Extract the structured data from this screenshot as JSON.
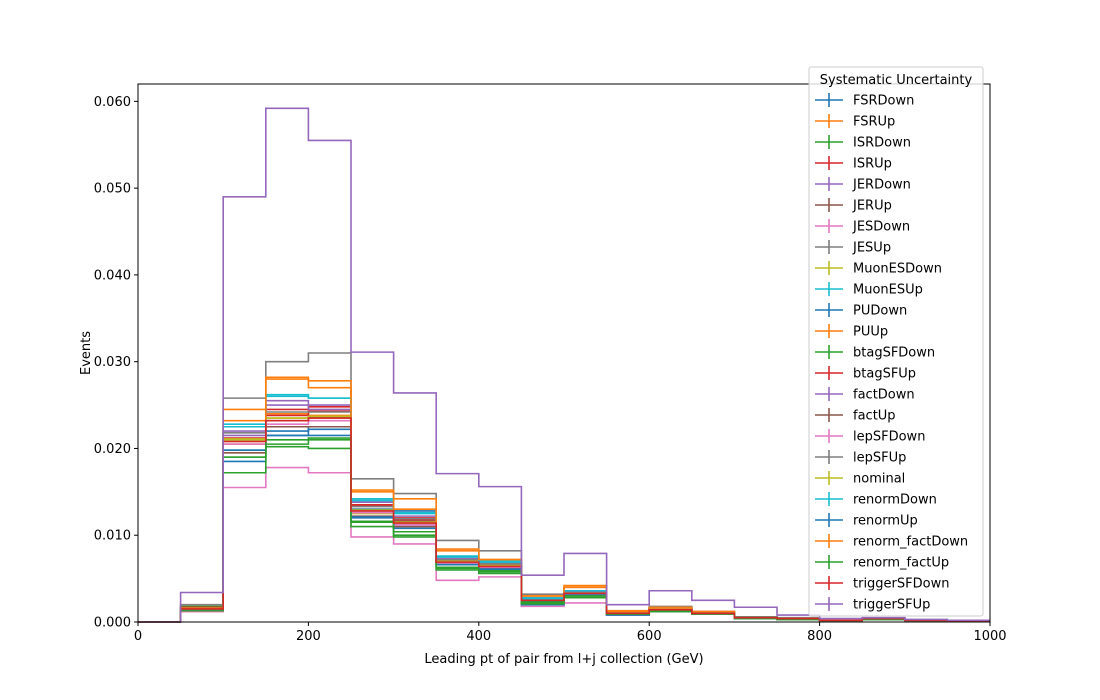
{
  "chart_data": {
    "type": "line",
    "drawstyle": "step-histogram",
    "xlabel": "Leading pt of pair from l+j collection (GeV)",
    "ylabel": "Events",
    "xlim": [
      0,
      1000
    ],
    "ylim": [
      0,
      0.062
    ],
    "x_ticks": [
      0,
      200,
      400,
      600,
      800,
      1000
    ],
    "y_ticks": [
      0.0,
      0.01,
      0.02,
      0.03,
      0.04,
      0.05,
      0.06
    ],
    "x_tick_labels": [
      "0",
      "200",
      "400",
      "600",
      "800",
      "1000"
    ],
    "y_tick_labels": [
      "0.000",
      "0.010",
      "0.020",
      "0.030",
      "0.040",
      "0.050",
      "0.060"
    ],
    "grid": false,
    "legend": {
      "title": "Systematic Uncertainty",
      "position": "top-right"
    },
    "bin_edges": [
      0,
      50,
      100,
      150,
      200,
      250,
      300,
      350,
      400,
      450,
      500,
      550,
      600,
      650,
      700,
      750,
      800,
      850,
      900,
      950,
      1000
    ],
    "series": [
      {
        "name": "FSRDown",
        "color": "#1f77b4",
        "values": [
          0,
          0.0016,
          0.0198,
          0.0215,
          0.0215,
          0.012,
          0.0112,
          0.0068,
          0.0064,
          0.0024,
          0.0032,
          0.001,
          0.0014,
          0.001,
          0.0005,
          0.0004,
          0.0002,
          0.0004,
          0.0002,
          0.0001
        ]
      },
      {
        "name": "FSRUp",
        "color": "#ff7f0e",
        "values": [
          0,
          0.0012,
          0.021,
          0.024,
          0.0238,
          0.013,
          0.0118,
          0.007,
          0.0066,
          0.0026,
          0.0034,
          0.0011,
          0.0015,
          0.0011,
          0.0005,
          0.0004,
          0.0002,
          0.0004,
          0.0002,
          0.0001
        ]
      },
      {
        "name": "ISRDown",
        "color": "#2ca02c",
        "values": [
          0,
          0.0018,
          0.019,
          0.0205,
          0.021,
          0.0115,
          0.01,
          0.0062,
          0.0058,
          0.0022,
          0.003,
          0.0009,
          0.0013,
          0.001,
          0.0005,
          0.0003,
          0.0002,
          0.0003,
          0.0002,
          0.0001
        ]
      },
      {
        "name": "ISRUp",
        "color": "#d62728",
        "values": [
          0,
          0.0014,
          0.0205,
          0.0245,
          0.0248,
          0.0135,
          0.012,
          0.007,
          0.0066,
          0.0026,
          0.0036,
          0.0012,
          0.0016,
          0.0011,
          0.0005,
          0.0004,
          0.0002,
          0.0004,
          0.0002,
          0.0001
        ]
      },
      {
        "name": "JERDown",
        "color": "#9467bd",
        "values": [
          0,
          0.0015,
          0.022,
          0.025,
          0.0245,
          0.014,
          0.0118,
          0.0072,
          0.0068,
          0.0027,
          0.0035,
          0.0011,
          0.0015,
          0.0011,
          0.0005,
          0.0004,
          0.0002,
          0.0004,
          0.0002,
          0.0001
        ]
      },
      {
        "name": "JERUp",
        "color": "#8c564b",
        "values": [
          0,
          0.0015,
          0.0208,
          0.0232,
          0.0236,
          0.0128,
          0.0116,
          0.007,
          0.0065,
          0.0025,
          0.0033,
          0.001,
          0.0014,
          0.001,
          0.0005,
          0.0004,
          0.0002,
          0.0004,
          0.0002,
          0.0001
        ]
      },
      {
        "name": "JESDown",
        "color": "#e377c2",
        "values": [
          0,
          0.0012,
          0.0155,
          0.0178,
          0.0172,
          0.0098,
          0.009,
          0.0048,
          0.0052,
          0.0018,
          0.0022,
          0.0008,
          0.0012,
          0.0009,
          0.0004,
          0.0003,
          0.0001,
          0.0003,
          0.0001,
          0.0001
        ]
      },
      {
        "name": "JESUp",
        "color": "#7f7f7f",
        "values": [
          0,
          0.002,
          0.0258,
          0.03,
          0.031,
          0.0165,
          0.0148,
          0.0094,
          0.0082,
          0.0032,
          0.004,
          0.0012,
          0.0018,
          0.0012,
          0.0006,
          0.0005,
          0.0002,
          0.0004,
          0.0002,
          0.0001
        ]
      },
      {
        "name": "MuonESDown",
        "color": "#bcbd22",
        "values": [
          0,
          0.0015,
          0.021,
          0.0235,
          0.0235,
          0.0125,
          0.0114,
          0.0068,
          0.0064,
          0.0025,
          0.0032,
          0.001,
          0.0014,
          0.001,
          0.0005,
          0.0004,
          0.0002,
          0.0004,
          0.0002,
          0.0001
        ]
      },
      {
        "name": "MuonESUp",
        "color": "#17becf",
        "values": [
          0,
          0.0016,
          0.0228,
          0.0262,
          0.0258,
          0.0142,
          0.0126,
          0.0076,
          0.007,
          0.0028,
          0.0036,
          0.0011,
          0.0016,
          0.0011,
          0.0005,
          0.0004,
          0.0002,
          0.0004,
          0.0002,
          0.0001
        ]
      },
      {
        "name": "PUDown",
        "color": "#1f77b4",
        "values": [
          0,
          0.0014,
          0.0185,
          0.0215,
          0.0225,
          0.013,
          0.0128,
          0.0075,
          0.006,
          0.002,
          0.0028,
          0.0008,
          0.0012,
          0.0009,
          0.0004,
          0.0003,
          0.0002,
          0.0003,
          0.0002,
          0.0001
        ]
      },
      {
        "name": "PUUp",
        "color": "#ff7f0e",
        "values": [
          0,
          0.0016,
          0.0245,
          0.0282,
          0.0278,
          0.0152,
          0.0142,
          0.0084,
          0.0072,
          0.003,
          0.0042,
          0.0013,
          0.0017,
          0.0012,
          0.0005,
          0.0004,
          0.0002,
          0.0004,
          0.0002,
          0.0001
        ]
      },
      {
        "name": "btagSFDown",
        "color": "#2ca02c",
        "values": [
          0,
          0.0013,
          0.0172,
          0.0202,
          0.02,
          0.011,
          0.0098,
          0.006,
          0.0056,
          0.0021,
          0.0028,
          0.0009,
          0.0012,
          0.0009,
          0.0004,
          0.0003,
          0.0001,
          0.0003,
          0.0001,
          0.0001
        ]
      },
      {
        "name": "btagSFUp",
        "color": "#d62728",
        "values": [
          0,
          0.0017,
          0.0212,
          0.0238,
          0.0243,
          0.0134,
          0.0118,
          0.0071,
          0.0067,
          0.0026,
          0.0034,
          0.0011,
          0.0015,
          0.0011,
          0.0005,
          0.0004,
          0.0002,
          0.0004,
          0.0002,
          0.0001
        ]
      },
      {
        "name": "factDown",
        "color": "#9467bd",
        "values": [
          0,
          0.0015,
          0.0215,
          0.0255,
          0.025,
          0.0138,
          0.0122,
          0.0073,
          0.0068,
          0.0027,
          0.0035,
          0.0011,
          0.0015,
          0.0011,
          0.0005,
          0.0004,
          0.0002,
          0.0004,
          0.0002,
          0.0001
        ]
      },
      {
        "name": "factUp",
        "color": "#8c564b",
        "values": [
          0,
          0.0015,
          0.0195,
          0.0225,
          0.0225,
          0.0122,
          0.011,
          0.0066,
          0.0062,
          0.0024,
          0.0031,
          0.001,
          0.0014,
          0.001,
          0.0005,
          0.0004,
          0.0002,
          0.0004,
          0.0002,
          0.0001
        ]
      },
      {
        "name": "lepSFDown",
        "color": "#e377c2",
        "values": [
          0,
          0.0014,
          0.0205,
          0.0228,
          0.0232,
          0.0126,
          0.0112,
          0.0068,
          0.0063,
          0.0025,
          0.0032,
          0.001,
          0.0014,
          0.001,
          0.0005,
          0.0004,
          0.0002,
          0.0004,
          0.0002,
          0.0001
        ]
      },
      {
        "name": "lepSFUp",
        "color": "#7f7f7f",
        "values": [
          0,
          0.0016,
          0.0218,
          0.0242,
          0.0242,
          0.0133,
          0.0119,
          0.0072,
          0.0067,
          0.0026,
          0.0034,
          0.0011,
          0.0015,
          0.0011,
          0.0005,
          0.0004,
          0.0002,
          0.0004,
          0.0002,
          0.0001
        ]
      },
      {
        "name": "nominal",
        "color": "#bcbd22",
        "values": [
          0,
          0.0015,
          0.0211,
          0.0235,
          0.0237,
          0.0129,
          0.0115,
          0.007,
          0.0065,
          0.0025,
          0.0033,
          0.001,
          0.0014,
          0.001,
          0.0005,
          0.0004,
          0.0002,
          0.0004,
          0.0002,
          0.0001
        ]
      },
      {
        "name": "renormDown",
        "color": "#17becf",
        "values": [
          0,
          0.0016,
          0.0225,
          0.026,
          0.0258,
          0.014,
          0.0125,
          0.0075,
          0.0069,
          0.0027,
          0.0036,
          0.0011,
          0.0016,
          0.0011,
          0.0005,
          0.0004,
          0.0002,
          0.0004,
          0.0002,
          0.0001
        ]
      },
      {
        "name": "renormUp",
        "color": "#1f77b4",
        "values": [
          0,
          0.0014,
          0.0198,
          0.022,
          0.0222,
          0.0121,
          0.0108,
          0.0066,
          0.0061,
          0.0024,
          0.0031,
          0.001,
          0.0013,
          0.001,
          0.0005,
          0.0004,
          0.0002,
          0.0004,
          0.0002,
          0.0001
        ]
      },
      {
        "name": "renorm_factDown",
        "color": "#ff7f0e",
        "values": [
          0,
          0.0016,
          0.0232,
          0.028,
          0.027,
          0.015,
          0.013,
          0.0082,
          0.0072,
          0.003,
          0.004,
          0.0012,
          0.0016,
          0.0012,
          0.0005,
          0.0004,
          0.0002,
          0.0004,
          0.0002,
          0.0001
        ]
      },
      {
        "name": "renorm_factUp",
        "color": "#2ca02c",
        "values": [
          0,
          0.0014,
          0.019,
          0.021,
          0.0212,
          0.0116,
          0.0104,
          0.0063,
          0.0059,
          0.0023,
          0.003,
          0.0009,
          0.0013,
          0.001,
          0.0005,
          0.0003,
          0.0002,
          0.0003,
          0.0002,
          0.0001
        ]
      },
      {
        "name": "triggerSFDown",
        "color": "#d62728",
        "values": [
          0,
          0.0015,
          0.0208,
          0.0232,
          0.0235,
          0.0128,
          0.0114,
          0.0069,
          0.0064,
          0.0025,
          0.0033,
          0.001,
          0.0014,
          0.001,
          0.0005,
          0.0004,
          0.0002,
          0.0004,
          0.0002,
          0.0001
        ]
      },
      {
        "name": "triggerSFUp",
        "color": "#9467bd",
        "values": [
          0,
          0.0034,
          0.049,
          0.0592,
          0.0555,
          0.0311,
          0.0264,
          0.0171,
          0.0156,
          0.0054,
          0.0079,
          0.002,
          0.0036,
          0.0025,
          0.0017,
          0.0008,
          0.0004,
          0.0005,
          0.0003,
          0.0002
        ]
      }
    ]
  }
}
